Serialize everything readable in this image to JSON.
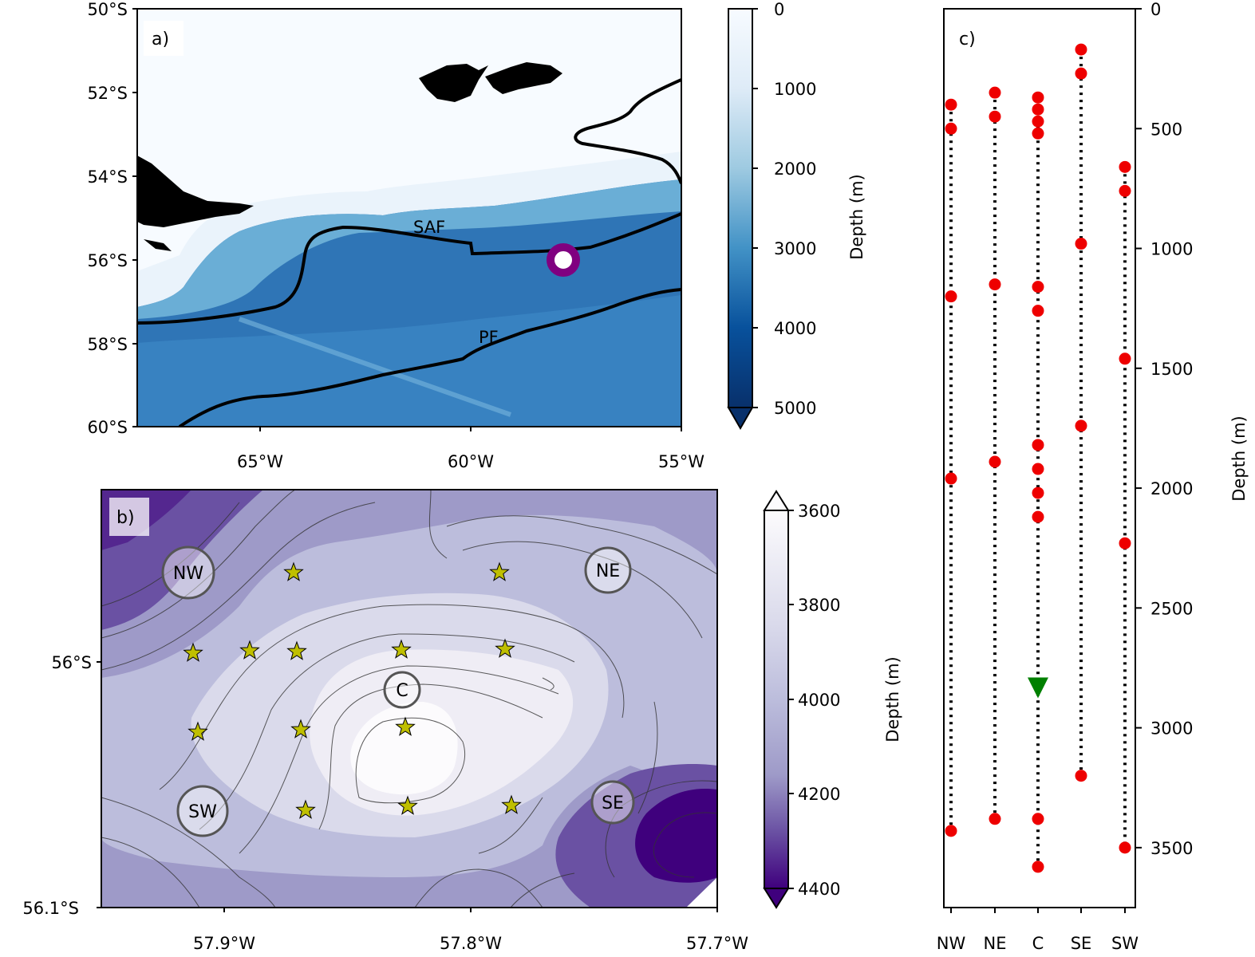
{
  "panel_a": {
    "label": "a)",
    "lat_ticks": [
      "50°S",
      "52°S",
      "54°S",
      "56°S",
      "58°S",
      "60°S"
    ],
    "lon_ticks": [
      "65°W",
      "60°W",
      "55°W"
    ],
    "front_labels": [
      "SAF",
      "PF"
    ],
    "colorbar": {
      "label": "Depth (m)",
      "ticks": [
        "0",
        "1000",
        "2000",
        "3000",
        "4000",
        "5000"
      ],
      "range": [
        0,
        5000
      ],
      "cmap": "Blues",
      "extend": "max"
    },
    "site_marker": {
      "lat": -56.0,
      "lon": -57.8,
      "color": "#800080"
    }
  },
  "panel_b": {
    "label": "b)",
    "lat_ticks": [
      "56°S",
      "56.1°S"
    ],
    "lon_ticks": [
      "57.9°W",
      "57.8°W",
      "57.7°W"
    ],
    "mooring_labels": [
      "NW",
      "NE",
      "C",
      "SW",
      "SE"
    ],
    "colorbar": {
      "label": "Depth (m)",
      "ticks": [
        "3600",
        "3800",
        "4000",
        "4200",
        "4400"
      ],
      "range": [
        3600,
        4400
      ],
      "cmap": "Purples",
      "extend": "both"
    },
    "star_color": "#bfbf00"
  },
  "panel_c": {
    "label": "c)",
    "ylabel": "Depth (m)",
    "y_ticks": [
      "0",
      "500",
      "1000",
      "1500",
      "2000",
      "2500",
      "3000",
      "3500"
    ],
    "x_ticks": [
      "NW",
      "NE",
      "C",
      "SE",
      "SW"
    ],
    "marker_color": "#ee0000",
    "triangle_color": "#008000"
  },
  "chart_data": {
    "type": "scatter",
    "categories": [
      "NW",
      "NE",
      "C",
      "SE",
      "SW"
    ],
    "ylabel": "Depth (m)",
    "ylim": [
      3750,
      0
    ],
    "series": [
      {
        "category": "NW",
        "values": [
          400,
          500,
          1200,
          1960,
          3430
        ]
      },
      {
        "category": "NE",
        "values": [
          350,
          450,
          1150,
          1890,
          3380
        ]
      },
      {
        "category": "C",
        "values": [
          370,
          420,
          470,
          520,
          1160,
          1260,
          1820,
          1920,
          2020,
          2120,
          3380,
          3580
        ]
      },
      {
        "category": "SE",
        "values": [
          170,
          270,
          980,
          1740,
          3200
        ]
      },
      {
        "category": "SW",
        "values": [
          660,
          760,
          1460,
          2230,
          3500
        ]
      }
    ],
    "triangle": {
      "category": "C",
      "value": 2830
    }
  }
}
